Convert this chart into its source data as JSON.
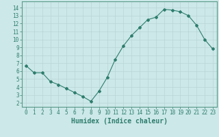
{
  "x": [
    0,
    1,
    2,
    3,
    4,
    5,
    6,
    7,
    8,
    9,
    10,
    11,
    12,
    13,
    14,
    15,
    16,
    17,
    18,
    19,
    20,
    21,
    22,
    23
  ],
  "y": [
    6.7,
    5.8,
    5.8,
    4.7,
    4.3,
    3.8,
    3.3,
    2.8,
    2.2,
    3.5,
    5.2,
    7.5,
    9.2,
    10.5,
    11.5,
    12.5,
    12.8,
    13.8,
    13.7,
    13.5,
    13.0,
    11.8,
    10.0,
    8.8
  ],
  "line_color": "#2e7d6e",
  "marker": "D",
  "marker_size": 2.0,
  "bg_color": "#cce8e8",
  "grid_color": "#b8d4d4",
  "xlabel": "Humidex (Indice chaleur)",
  "ylabel_ticks": [
    2,
    3,
    4,
    5,
    6,
    7,
    8,
    9,
    10,
    11,
    12,
    13,
    14
  ],
  "ylim": [
    1.5,
    14.8
  ],
  "xlim": [
    -0.5,
    23.5
  ],
  "xticks": [
    0,
    1,
    2,
    3,
    4,
    5,
    6,
    7,
    8,
    9,
    10,
    11,
    12,
    13,
    14,
    15,
    16,
    17,
    18,
    19,
    20,
    21,
    22,
    23
  ],
  "tick_fontsize": 5.5,
  "xlabel_fontsize": 7.0,
  "tick_color": "#2e7d6e",
  "axis_color": "#2e7d6e",
  "spine_color": "#5a9a8a"
}
